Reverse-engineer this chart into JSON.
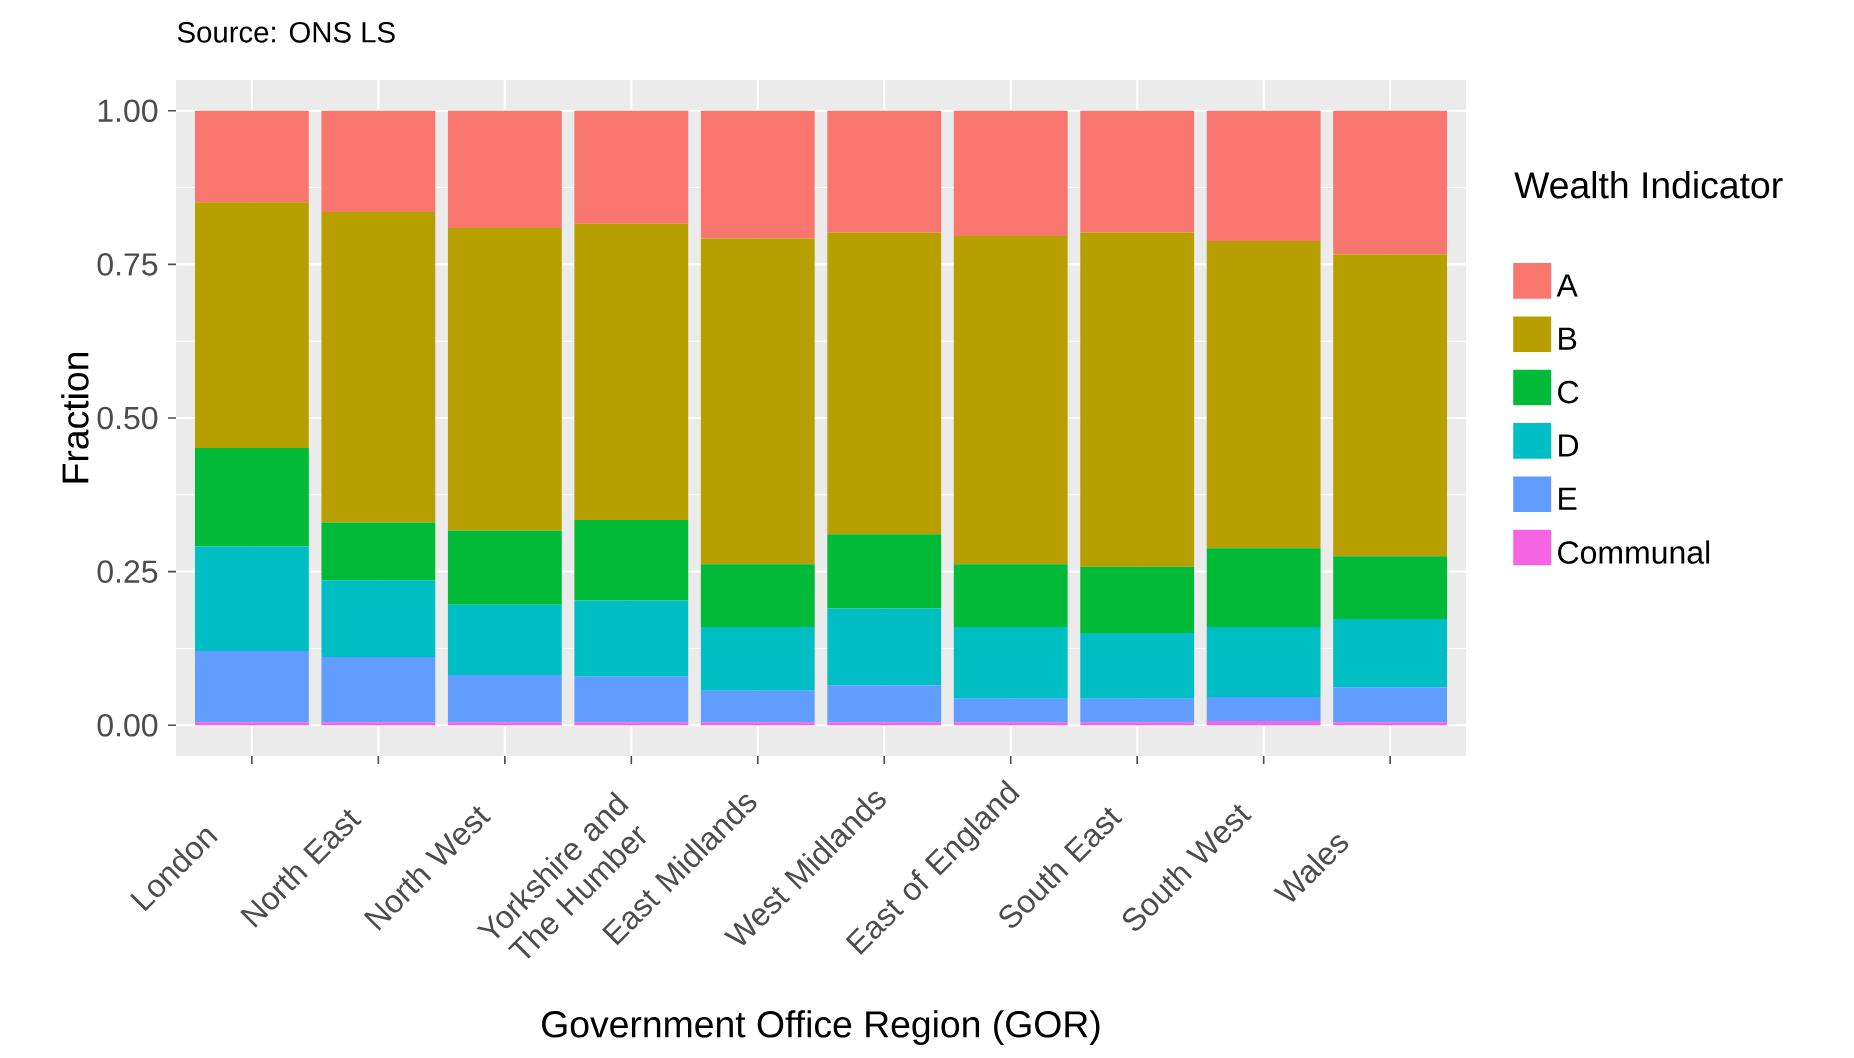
{
  "chart_data": {
    "type": "bar",
    "stacked": true,
    "annotations": [
      "Source: ONS LS"
    ],
    "xlabel": "Government Office Region (GOR)",
    "ylabel": "Fraction",
    "legend_title": "Wealth Indicator",
    "categories": [
      "London",
      "North East",
      "North West",
      "Yorkshire and The Humber",
      "East Midlands",
      "West Midlands",
      "East of England",
      "South East",
      "South West",
      "Wales"
    ],
    "ylim": [
      -0.05,
      1.05
    ],
    "yticks": [
      {
        "value": 0,
        "label": "0.00"
      },
      {
        "value": 0.25,
        "label": "0.25"
      },
      {
        "value": 0.5,
        "label": "0.50"
      },
      {
        "value": 0.75,
        "label": "0.75"
      },
      {
        "value": 1,
        "label": "1.00"
      }
    ],
    "grid": true,
    "legend": "right",
    "series": [
      {
        "name": "Communal",
        "color": "#f564e3",
        "values": [
          0.005,
          0.005,
          0.005,
          0.005,
          0.005,
          0.005,
          0.005,
          0.005,
          0.007,
          0.005
        ]
      },
      {
        "name": "E",
        "color": "#619cff",
        "values": [
          0.116,
          0.106,
          0.077,
          0.074,
          0.051,
          0.06,
          0.038,
          0.038,
          0.039,
          0.057
        ]
      },
      {
        "name": "D",
        "color": "#00bfc4",
        "values": [
          0.17,
          0.125,
          0.114,
          0.124,
          0.104,
          0.125,
          0.117,
          0.107,
          0.114,
          0.111
        ]
      },
      {
        "name": "C",
        "color": "#00ba38",
        "values": [
          0.16,
          0.094,
          0.121,
          0.131,
          0.102,
          0.121,
          0.102,
          0.108,
          0.128,
          0.102
        ]
      },
      {
        "name": "B",
        "color": "#b79f00",
        "values": [
          0.4,
          0.505,
          0.492,
          0.482,
          0.53,
          0.491,
          0.534,
          0.544,
          0.5,
          0.491
        ]
      },
      {
        "name": "A",
        "color": "#f8766d",
        "values": [
          0.149,
          0.165,
          0.191,
          0.184,
          0.208,
          0.198,
          0.204,
          0.198,
          0.212,
          0.234
        ]
      }
    ]
  }
}
